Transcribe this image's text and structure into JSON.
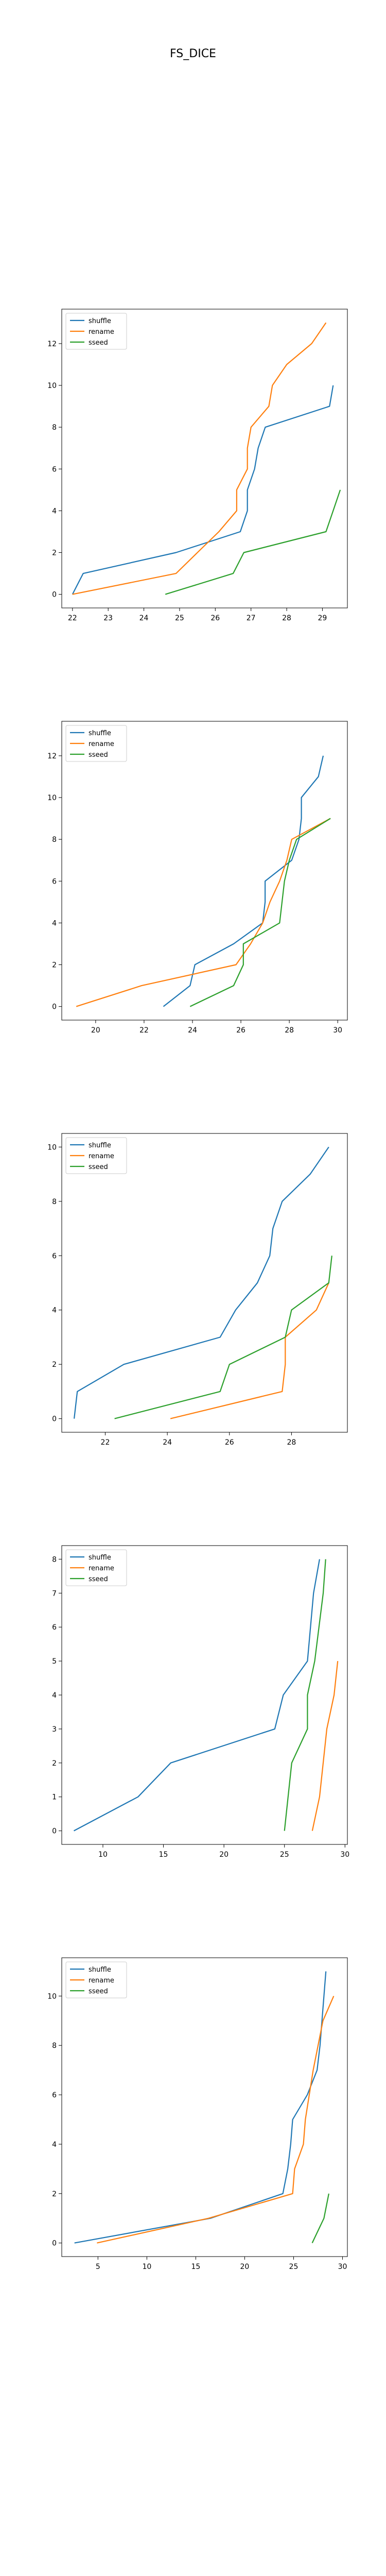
{
  "figure": {
    "title": "FS_DICE"
  },
  "colors": {
    "shuffle": "#1f77b4",
    "rename": "#ff7f0e",
    "sseed": "#2ca02c"
  },
  "chart_data": [
    {
      "type": "line",
      "legend": "top-left",
      "grid": false,
      "xlim": [
        21.7,
        29.7
      ],
      "ylim": [
        -0.65,
        13.65
      ],
      "xticks": [
        22,
        23,
        24,
        25,
        26,
        27,
        28,
        29
      ],
      "yticks": [
        0,
        2,
        4,
        6,
        8,
        10,
        12
      ],
      "series": [
        {
          "name": "shuffle",
          "x": [
            22.0,
            22.3,
            24.9,
            26.7,
            26.9,
            26.9,
            27.1,
            27.2,
            27.4,
            29.2,
            29.3
          ],
          "y": [
            0,
            1,
            2,
            3,
            4,
            5,
            6,
            7,
            8,
            9,
            10
          ]
        },
        {
          "name": "rename",
          "x": [
            22.0,
            24.9,
            25.5,
            26.1,
            26.6,
            26.6,
            26.9,
            26.9,
            27.0,
            27.5,
            27.6,
            28.0,
            28.7,
            29.1
          ],
          "y": [
            0,
            1,
            2,
            3,
            4,
            5,
            6,
            7,
            8,
            9,
            10,
            11,
            12,
            13
          ]
        },
        {
          "name": "sseed",
          "x": [
            24.6,
            26.5,
            26.8,
            29.1,
            29.3,
            29.5
          ],
          "y": [
            0,
            1,
            2,
            3,
            4,
            5
          ]
        }
      ]
    },
    {
      "type": "line",
      "legend": "top-left",
      "grid": false,
      "xlim": [
        18.6,
        30.4
      ],
      "ylim": [
        -0.65,
        13.65
      ],
      "xticks": [
        20,
        22,
        24,
        26,
        28,
        30
      ],
      "yticks": [
        0,
        2,
        4,
        6,
        8,
        10,
        12
      ],
      "series": [
        {
          "name": "shuffle",
          "x": [
            22.8,
            23.9,
            24.1,
            25.7,
            26.9,
            27.0,
            27.0,
            28.1,
            28.4,
            28.5,
            28.5,
            29.2,
            29.4
          ],
          "y": [
            0,
            1,
            2,
            3,
            4,
            5,
            6,
            7,
            8,
            9,
            10,
            11,
            12
          ]
        },
        {
          "name": "rename",
          "x": [
            19.2,
            21.9,
            25.8,
            26.4,
            26.9,
            27.2,
            27.6,
            27.9,
            28.1,
            29.7
          ],
          "y": [
            0,
            1,
            2,
            3,
            4,
            5,
            6,
            7,
            8,
            9
          ]
        },
        {
          "name": "sseed",
          "x": [
            23.9,
            25.7,
            26.1,
            26.1,
            27.6,
            27.7,
            27.8,
            28.0,
            28.3,
            29.7
          ],
          "y": [
            0,
            1,
            2,
            3,
            4,
            5,
            6,
            7,
            8,
            9
          ]
        }
      ]
    },
    {
      "type": "line",
      "legend": "top-left",
      "grid": false,
      "xlim": [
        20.6,
        29.8
      ],
      "ylim": [
        -0.5,
        10.5
      ],
      "xticks": [
        22,
        24,
        26,
        28
      ],
      "yticks": [
        0,
        2,
        4,
        6,
        8,
        10
      ],
      "series": [
        {
          "name": "shuffle",
          "x": [
            21.0,
            21.1,
            22.6,
            25.7,
            26.2,
            26.9,
            27.3,
            27.4,
            27.7,
            28.6,
            29.2
          ],
          "y": [
            0,
            1,
            2,
            3,
            4,
            5,
            6,
            7,
            8,
            9,
            10
          ]
        },
        {
          "name": "rename",
          "x": [
            24.1,
            27.7,
            27.8,
            27.8,
            28.8,
            29.2
          ],
          "y": [
            0,
            1,
            2,
            3,
            4,
            5
          ]
        },
        {
          "name": "sseed",
          "x": [
            22.3,
            25.7,
            26.0,
            27.8,
            28.0,
            29.2,
            29.3
          ],
          "y": [
            0,
            1,
            2,
            3,
            4,
            5,
            6
          ]
        }
      ]
    },
    {
      "type": "line",
      "legend": "top-left",
      "grid": false,
      "xlim": [
        6.6,
        30.2
      ],
      "ylim": [
        -0.4,
        8.4
      ],
      "xticks": [
        10,
        15,
        20,
        25,
        30
      ],
      "yticks": [
        0,
        1,
        2,
        3,
        4,
        5,
        6,
        7,
        8
      ],
      "series": [
        {
          "name": "shuffle",
          "x": [
            7.6,
            12.9,
            15.6,
            24.2,
            24.9,
            26.9,
            27.4,
            27.9
          ],
          "y": [
            0,
            1,
            2,
            3,
            4,
            5,
            7,
            8
          ]
        },
        {
          "name": "rename",
          "x": [
            27.3,
            27.9,
            28.5,
            29.1,
            29.4
          ],
          "y": [
            0,
            1,
            3,
            4,
            5
          ]
        },
        {
          "name": "sseed",
          "x": [
            25.0,
            25.6,
            26.9,
            26.9,
            27.5,
            28.2,
            28.4
          ],
          "y": [
            0,
            2,
            3,
            4,
            5,
            7,
            8
          ]
        }
      ]
    },
    {
      "type": "line",
      "legend": "top-left",
      "grid": false,
      "xlim": [
        1.3,
        30.5
      ],
      "ylim": [
        -0.55,
        11.55
      ],
      "xticks": [
        5,
        10,
        15,
        20,
        25,
        30
      ],
      "yticks": [
        0,
        2,
        4,
        6,
        8,
        10
      ],
      "series": [
        {
          "name": "shuffle",
          "x": [
            2.6,
            16.5,
            23.9,
            24.4,
            24.7,
            24.9,
            26.4,
            27.4,
            27.7,
            27.9,
            28.1,
            28.3
          ],
          "y": [
            0,
            1,
            2,
            3,
            4,
            5,
            6,
            7,
            8,
            9,
            10,
            11
          ]
        },
        {
          "name": "rename",
          "x": [
            4.9,
            16.3,
            24.9,
            25.1,
            26.0,
            26.2,
            26.6,
            27.0,
            27.5,
            28.0,
            29.1
          ],
          "y": [
            0,
            1,
            2,
            3,
            4,
            5,
            6,
            7,
            8,
            9,
            10
          ]
        },
        {
          "name": "sseed",
          "x": [
            26.9,
            28.1,
            28.6
          ],
          "y": [
            0,
            1,
            2
          ]
        }
      ]
    }
  ]
}
